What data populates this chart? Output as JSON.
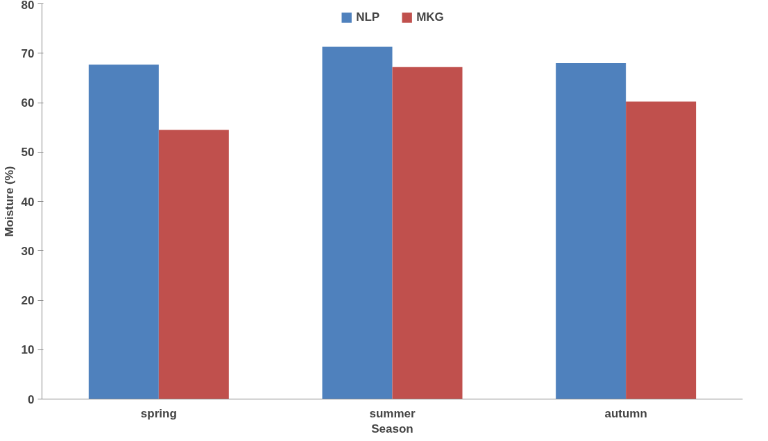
{
  "chart_data": {
    "type": "bar",
    "xlabel": "Season",
    "ylabel": "Moisture (%)",
    "categories": [
      "spring",
      "summer",
      "autumn"
    ],
    "series": [
      {
        "name": "NLP",
        "color": "#4f81bd",
        "values": [
          67.7,
          71.3,
          68.0
        ]
      },
      {
        "name": "MKG",
        "color": "#c0504d",
        "values": [
          54.5,
          67.2,
          60.2
        ]
      }
    ],
    "ylim": [
      0,
      80
    ],
    "yticks": [
      0,
      10,
      20,
      30,
      40,
      50,
      60,
      70,
      80
    ],
    "grid": false,
    "legend": "top"
  }
}
